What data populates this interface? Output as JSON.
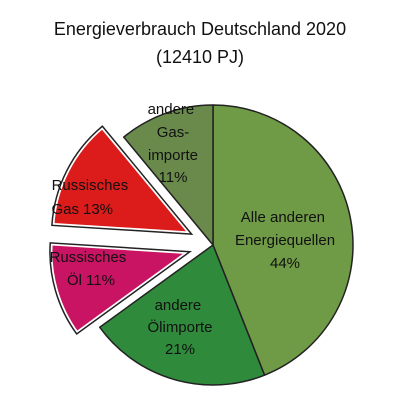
{
  "chart_data": {
    "type": "pie",
    "title": "Energieverbrauch Deutschland 2020",
    "subtitle": "(12410 PJ)",
    "categories": [
      "Alle anderen Energiequellen",
      "andere Ölimporte",
      "Russisches Öl",
      "Russisches Gas",
      "andere Gas-importe"
    ],
    "values": [
      44,
      21,
      11,
      13,
      11
    ],
    "value_labels": [
      "44%",
      "21%",
      "11%",
      "13%",
      "11%"
    ],
    "colors": [
      "#6f9a46",
      "#2f8a3c",
      "#c81462",
      "#dc1b1b",
      "#6a8a4c"
    ]
  }
}
